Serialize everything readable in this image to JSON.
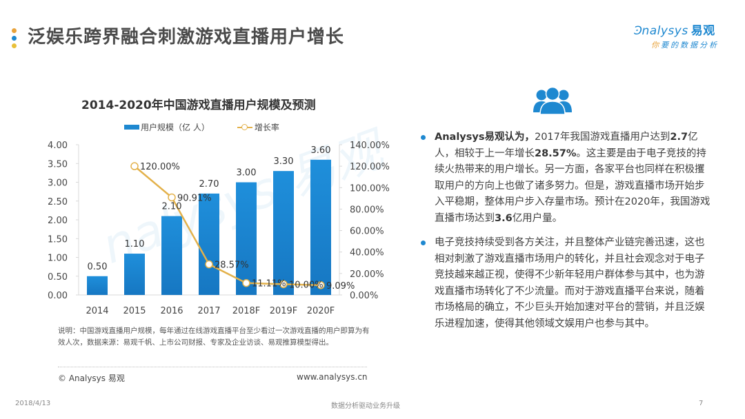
{
  "header": {
    "title": "泛娱乐跨界融合刺激游戏直播用户增长",
    "dot_colors": [
      "#e8a23a",
      "#1e88d0",
      "#e8c03a"
    ]
  },
  "logo": {
    "brand": "nalysys",
    "brand_cn": "易观",
    "tagline_first": "你",
    "tagline_rest": "要的数据分析"
  },
  "colors": {
    "bar": "#1e88d0",
    "line": "#e3b14a",
    "accent": "#1e88d0"
  },
  "chart_data": {
    "type": "bar",
    "title": "2014-2020年中国游戏直播用户规模及预测",
    "categories": [
      "2014",
      "2015",
      "2016",
      "2017",
      "2018F",
      "2019F",
      "2020F"
    ],
    "series": [
      {
        "name": "用户规模（亿人）",
        "type": "bar",
        "axis": "left",
        "values": [
          0.5,
          1.1,
          2.1,
          2.7,
          3.0,
          3.3,
          3.6
        ],
        "labels": [
          "0.50",
          "1.10",
          "2.10",
          "2.70",
          "3.00",
          "3.30",
          "3.60"
        ]
      },
      {
        "name": "增长率",
        "type": "line",
        "axis": "right",
        "values": [
          null,
          120.0,
          90.91,
          28.57,
          11.11,
          10.0,
          9.09
        ],
        "labels": [
          "",
          "120.00%",
          "90.91%",
          "28.57%",
          "11.11%",
          "10.00%",
          "9.09%"
        ]
      }
    ],
    "y_left": {
      "min": 0,
      "max": 4,
      "step": 0.5,
      "ticks": [
        "0.00",
        "0.50",
        "1.00",
        "1.50",
        "2.00",
        "2.50",
        "3.00",
        "3.50",
        "4.00"
      ]
    },
    "y_right": {
      "min": 0,
      "max": 140,
      "step": 20,
      "ticks": [
        "0.00%",
        "20.00%",
        "40.00%",
        "60.00%",
        "80.00%",
        "100.00%",
        "120.00%",
        "140.00%"
      ]
    },
    "xlabel": "",
    "ylabel": "",
    "grid": false,
    "legend": {
      "position": "top",
      "bar_label": "用户规模（亿 人）",
      "line_label": "增长率"
    }
  },
  "chart_note": "说明：中国游戏直播用户规模，每年通过在线游戏直播平台至少看过一次游戏直播的用户即算为有效人次，数据来源：易观千帆、上市公司财报、专家及企业访谈、易观推算模型得出。",
  "copyright": "© Analysys 易观",
  "website": "www.analysys.cn",
  "insights": [
    {
      "parts": [
        {
          "bold": true,
          "text": "Analysys易观认为，"
        },
        {
          "bold": false,
          "text": "2017年我国游戏直播用户达到"
        },
        {
          "bold": true,
          "text": "2.7"
        },
        {
          "bold": false,
          "text": "亿人，相较于上一年增长"
        },
        {
          "bold": true,
          "text": "28.57%"
        },
        {
          "bold": false,
          "text": "。这主要是由于电子竞技的持续火热带来的用户增长。另一方面，各家平台也同样在积极攫取用户的方向上也做了诸多努力。但是，游戏直播市场开始步入平稳期，整体用户步入存量市场。预计在2020年，我国游戏直播市场达到"
        },
        {
          "bold": true,
          "text": "3.6"
        },
        {
          "bold": false,
          "text": "亿用户量。"
        }
      ]
    },
    {
      "parts": [
        {
          "bold": false,
          "text": "电子竞技持续受到各方关注，并且整体产业链完善迅速，这也相对刺激了游戏直播市场用户的转化，并且社会观念对于电子竞技越来越正视，使得不少新年轻用户群体参与其中，也为游戏直播市场转化了不少流量。而对于游戏直播平台来说，随着市场格局的确立，不少巨头开始加速对平台的营销，并且泛娱乐进程加速，使得其他领域文娱用户也参与其中。"
        }
      ]
    }
  ],
  "footer": {
    "date": "2018/4/13",
    "center": "数据分析驱动业务升级",
    "page": "7"
  }
}
